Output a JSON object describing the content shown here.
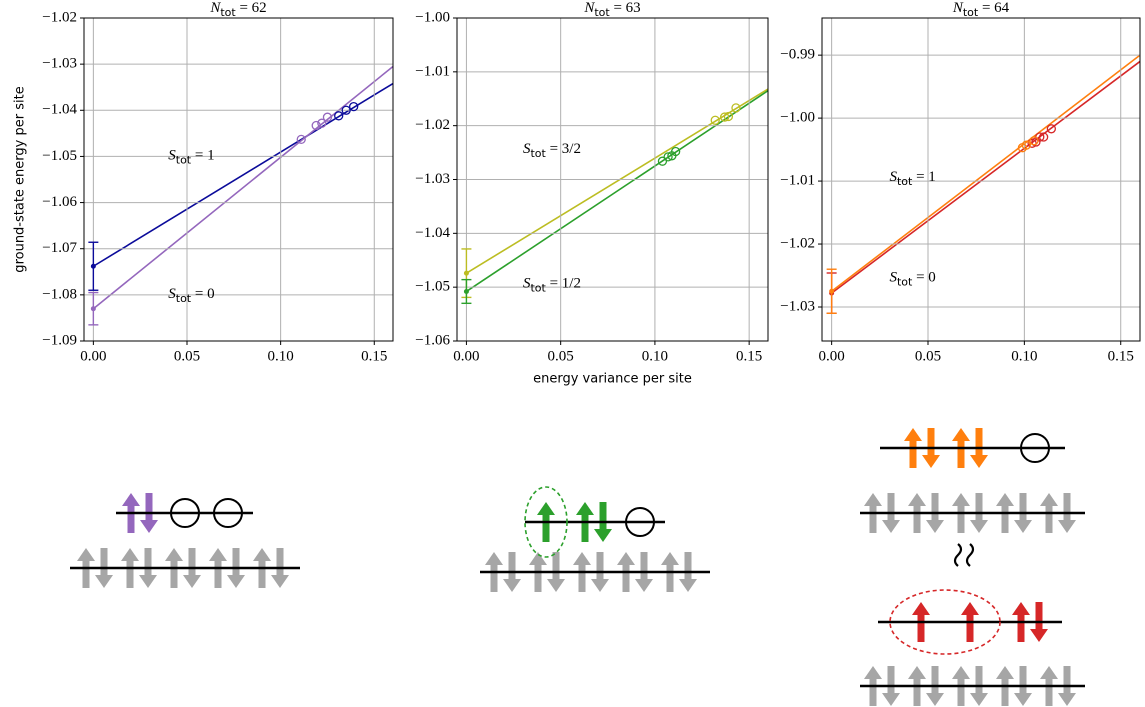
{
  "chart_data": [
    {
      "type": "scatter",
      "title": {
        "main": "N",
        "sub": "tot",
        "rest": " = 62"
      },
      "ylabel": "ground-state energy per site",
      "xlim": [
        -0.005,
        0.16
      ],
      "ylim": [
        -1.09,
        -1.02
      ],
      "grid": true,
      "xticks": [
        {
          "value": 0,
          "label": "0.00"
        },
        {
          "value": 0.05,
          "label": "0.05"
        },
        {
          "value": 0.1,
          "label": "0.10"
        },
        {
          "value": 0.15,
          "label": "0.15"
        }
      ],
      "yticks": [
        {
          "value": -1.09,
          "label": "−1.09"
        },
        {
          "value": -1.08,
          "label": "−1.08"
        },
        {
          "value": -1.07,
          "label": "−1.07"
        },
        {
          "value": -1.06,
          "label": "−1.06"
        },
        {
          "value": -1.05,
          "label": "−1.05"
        },
        {
          "value": -1.04,
          "label": "−1.04"
        },
        {
          "value": -1.03,
          "label": "−1.03"
        },
        {
          "value": -1.02,
          "label": "−1.02"
        }
      ],
      "series": [
        {
          "name": {
            "main": "S",
            "sub": "tot",
            "rest": " = 1"
          },
          "color": "#0b0b9a",
          "x": [
            0.131,
            0.135,
            0.139
          ],
          "values": [
            -1.0412,
            -1.04,
            -1.0392
          ],
          "fit": {
            "x": [
              0,
              0.16
            ],
            "values": [
              -1.0738,
              -1.0342
            ]
          },
          "error": 0.0052
        },
        {
          "name": {
            "main": "S",
            "sub": "tot",
            "rest": " = 0"
          },
          "color": "#9467bd",
          "x": [
            0.111,
            0.119,
            0.122,
            0.125
          ],
          "values": [
            -1.0463,
            -1.0433,
            -1.0428,
            -1.0415
          ],
          "fit": {
            "x": [
              0,
              0.16
            ],
            "values": [
              -1.083,
              -1.0305
            ]
          },
          "error": 0.0035
        }
      ]
    },
    {
      "type": "scatter",
      "title": {
        "main": "N",
        "sub": "tot",
        "rest": " = 63"
      },
      "xlabel": "energy variance per site",
      "xlim": [
        -0.005,
        0.16
      ],
      "ylim": [
        -1.06,
        -1.0
      ],
      "grid": true,
      "xticks": [
        {
          "value": 0,
          "label": "0.00"
        },
        {
          "value": 0.05,
          "label": "0.05"
        },
        {
          "value": 0.1,
          "label": "0.10"
        },
        {
          "value": 0.15,
          "label": "0.15"
        }
      ],
      "yticks": [
        {
          "value": -1.06,
          "label": "−1.06"
        },
        {
          "value": -1.05,
          "label": "−1.05"
        },
        {
          "value": -1.04,
          "label": "−1.04"
        },
        {
          "value": -1.03,
          "label": "−1.03"
        },
        {
          "value": -1.02,
          "label": "−1.02"
        },
        {
          "value": -1.01,
          "label": "−1.01"
        },
        {
          "value": -1.0,
          "label": "−1.00"
        }
      ],
      "series": [
        {
          "name": {
            "main": "S",
            "sub": "tot",
            "rest": " = 3/2"
          },
          "color": "#bcbd22",
          "x": [
            0.132,
            0.137,
            0.139,
            0.143
          ],
          "values": [
            -1.019,
            -1.0184,
            -1.0183,
            -1.0167
          ],
          "fit": {
            "x": [
              0,
              0.16
            ],
            "values": [
              -1.0474,
              -1.0132
            ]
          },
          "error": 0.0045
        },
        {
          "name": {
            "main": "S",
            "sub": "tot",
            "rest": " = 1/2"
          },
          "color": "#2ca02c",
          "x": [
            0.104,
            0.107,
            0.109,
            0.111
          ],
          "values": [
            -1.0266,
            -1.0258,
            -1.0256,
            -1.0248
          ],
          "fit": {
            "x": [
              0,
              0.16
            ],
            "values": [
              -1.0508,
              -1.0135
            ]
          },
          "error": 0.0022
        }
      ]
    },
    {
      "type": "scatter",
      "title": {
        "main": "N",
        "sub": "tot",
        "rest": " = 64"
      },
      "xlim": [
        -0.005,
        0.16
      ],
      "ylim": [
        -1.0354,
        -0.9841
      ],
      "grid": true,
      "xticks": [
        {
          "value": 0,
          "label": "0.00"
        },
        {
          "value": 0.05,
          "label": "0.05"
        },
        {
          "value": 0.1,
          "label": "0.10"
        },
        {
          "value": 0.15,
          "label": "0.15"
        }
      ],
      "yticks": [
        {
          "value": -1.03,
          "label": "−1.03"
        },
        {
          "value": -1.02,
          "label": "−1.02"
        },
        {
          "value": -1.01,
          "label": "−1.01"
        },
        {
          "value": -1.0,
          "label": "−1.00"
        },
        {
          "value": -0.99,
          "label": "−0.99"
        }
      ],
      "series": [
        {
          "name": {
            "main": "S",
            "sub": "tot",
            "rest": " = 1"
          },
          "color": "#d62728",
          "x": [
            0.104,
            0.106,
            0.108,
            0.11,
            0.114
          ],
          "values": [
            -1.004,
            -1.0038,
            -1.003,
            -1.003,
            -1.0017
          ],
          "fit": {
            "x": [
              0,
              0.16
            ],
            "values": [
              -1.0278,
              -0.991
            ]
          },
          "error": 0.0032
        },
        {
          "name": {
            "main": "S",
            "sub": "tot",
            "rest": " = 0"
          },
          "color": "#ff7f0e",
          "x": [
            0.099,
            0.101,
            0.105
          ],
          "values": [
            -1.0047,
            -1.0043,
            -1.0036
          ],
          "fit": {
            "x": [
              0,
              0.16
            ],
            "values": [
              -1.0275,
              -0.99
            ]
          },
          "error": 0.0035
        }
      ]
    }
  ]
}
